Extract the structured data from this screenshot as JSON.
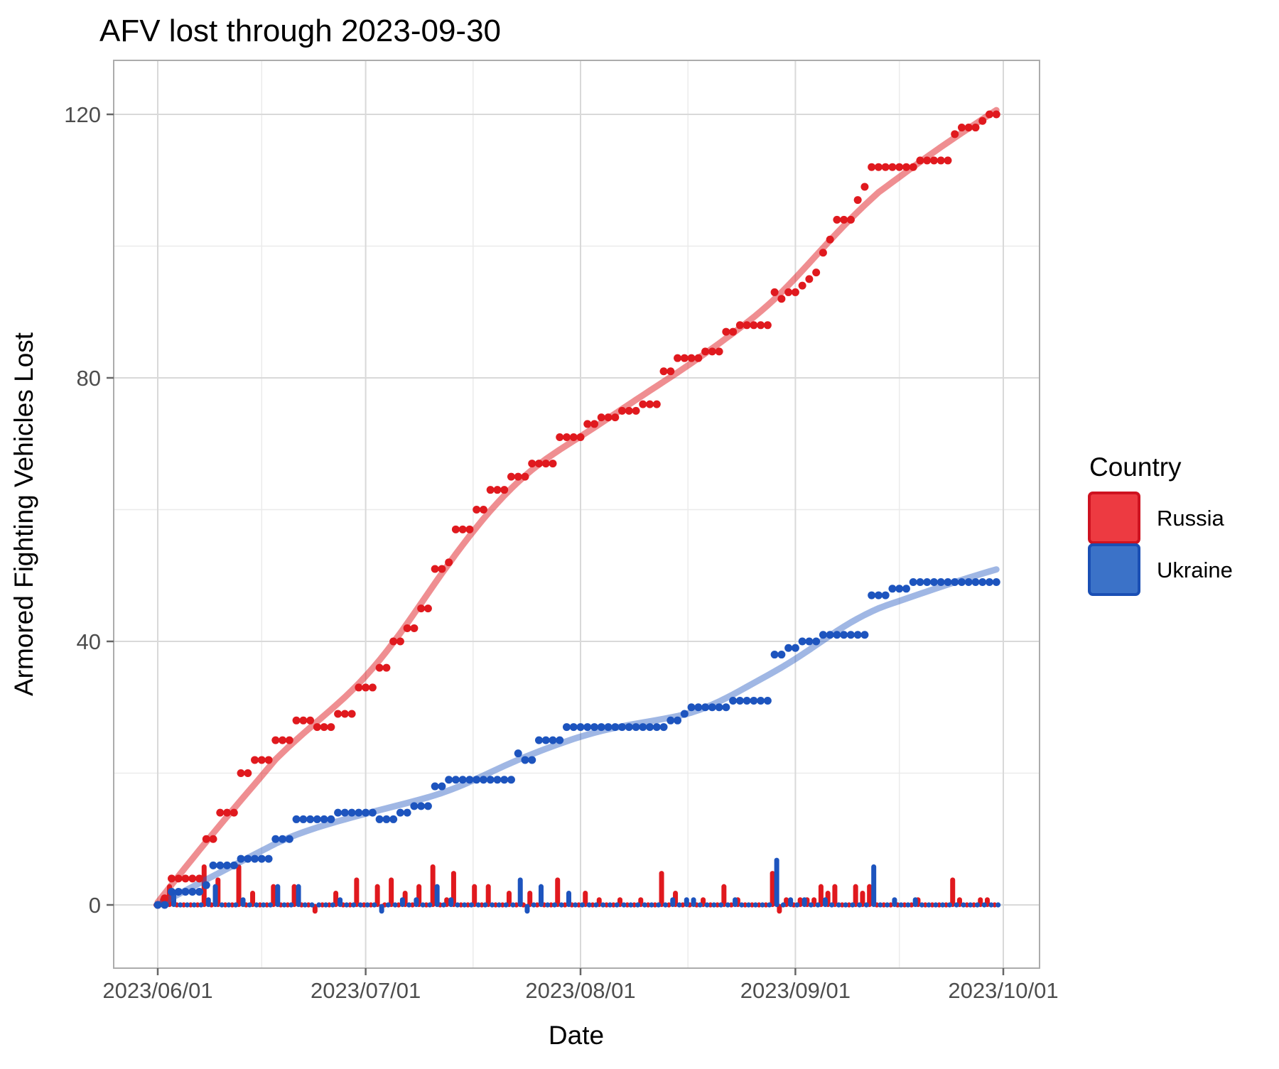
{
  "title": "AFV lost through 2023-09-30",
  "axes": {
    "x_label": "Date",
    "y_label": "Armored Fighting Vehicles Lost",
    "x_tick_labels": [
      "2023/06/01",
      "2023/07/01",
      "2023/08/01",
      "2023/09/01",
      "2023/10/01"
    ],
    "y_tick_labels": [
      "0",
      "40",
      "80",
      "120"
    ]
  },
  "legend": {
    "title": "Country",
    "items": [
      {
        "label": "Russia",
        "fill": "#ED3A41",
        "stroke": "#CE1220"
      },
      {
        "label": "Ukraine",
        "fill": "#3B72C8",
        "stroke": "#1A4FB4"
      }
    ]
  },
  "chart_data": {
    "type": "scatter+smooth+bar",
    "title": "AFV lost through 2023-09-30",
    "xlabel": "Date",
    "ylabel": "Armored Fighting Vehicles Lost",
    "x_start_date": "2023-06-01",
    "x_end_date": "2023-09-30",
    "n_days": 122,
    "x_major_tick_days": [
      0,
      30,
      61,
      92,
      122
    ],
    "x_minor_tick_days": [
      15,
      45.5,
      76.5,
      107
    ],
    "y_major_ticks": [
      0,
      40,
      80,
      120
    ],
    "y_minor_ticks": [
      20,
      60,
      100
    ],
    "ylim": [
      -10,
      128
    ],
    "legend_position": "right",
    "grid": true,
    "description": "Points show cumulative AFV losses per day; thick translucent lines are loess smooths; paired bars along zero show the day-over-day change (negative bars are downward revisions); small dots on the zero line mark days with no change.",
    "series": [
      {
        "name": "Russia",
        "point_color": "#E0191E",
        "smooth_color": "rgba(224,30,36,0.50)",
        "cumulative": [
          0,
          1,
          4,
          4,
          4,
          4,
          4,
          10,
          10,
          14,
          14,
          14,
          20,
          20,
          22,
          22,
          22,
          25,
          25,
          25,
          28,
          28,
          28,
          27,
          27,
          27,
          29,
          29,
          29,
          33,
          33,
          33,
          36,
          36,
          40,
          40,
          42,
          42,
          45,
          45,
          51,
          51,
          52,
          57,
          57,
          57,
          60,
          60,
          63,
          63,
          63,
          65,
          65,
          65,
          67,
          67,
          67,
          67,
          71,
          71,
          71,
          71,
          73,
          73,
          74,
          74,
          74,
          75,
          75,
          75,
          76,
          76,
          76,
          81,
          81,
          83,
          83,
          83,
          83,
          84,
          84,
          84,
          87,
          87,
          88,
          88,
          88,
          88,
          88,
          93,
          92,
          93,
          93,
          94,
          95,
          96,
          99,
          101,
          104,
          104,
          104,
          107,
          109,
          112,
          112,
          112,
          112,
          112,
          112,
          112,
          113,
          113,
          113,
          113,
          113,
          117,
          118,
          118,
          118,
          119,
          120,
          120
        ]
      },
      {
        "name": "Ukraine",
        "point_color": "#1D54BE",
        "smooth_color": "rgba(45,95,195,0.45)",
        "cumulative": [
          0,
          0,
          2,
          2,
          2,
          2,
          2,
          3,
          6,
          6,
          6,
          6,
          7,
          7,
          7,
          7,
          7,
          10,
          10,
          10,
          13,
          13,
          13,
          13,
          13,
          13,
          14,
          14,
          14,
          14,
          14,
          14,
          13,
          13,
          13,
          14,
          14,
          15,
          15,
          15,
          18,
          18,
          19,
          19,
          19,
          19,
          19,
          19,
          19,
          19,
          19,
          19,
          23,
          22,
          22,
          25,
          25,
          25,
          25,
          27,
          27,
          27,
          27,
          27,
          27,
          27,
          27,
          27,
          27,
          27,
          27,
          27,
          27,
          27,
          28,
          28,
          29,
          30,
          30,
          30,
          30,
          30,
          30,
          31,
          31,
          31,
          31,
          31,
          31,
          38,
          38,
          39,
          39,
          40,
          40,
          40,
          41,
          41,
          41,
          41,
          41,
          41,
          41,
          47,
          47,
          47,
          48,
          48,
          48,
          49,
          49,
          49,
          49,
          49,
          49,
          49,
          49,
          49,
          49,
          49,
          49,
          49
        ]
      }
    ],
    "final_values": {
      "Russia": 120,
      "Ukraine": 49
    },
    "style": {
      "grid_major_color": "#D9D9D9",
      "grid_minor_color": "#EBEBEB",
      "panel_border_color": "#ACACAC",
      "tick_mark_color": "#666666",
      "tick_text_color": "#4D4D4D"
    }
  }
}
